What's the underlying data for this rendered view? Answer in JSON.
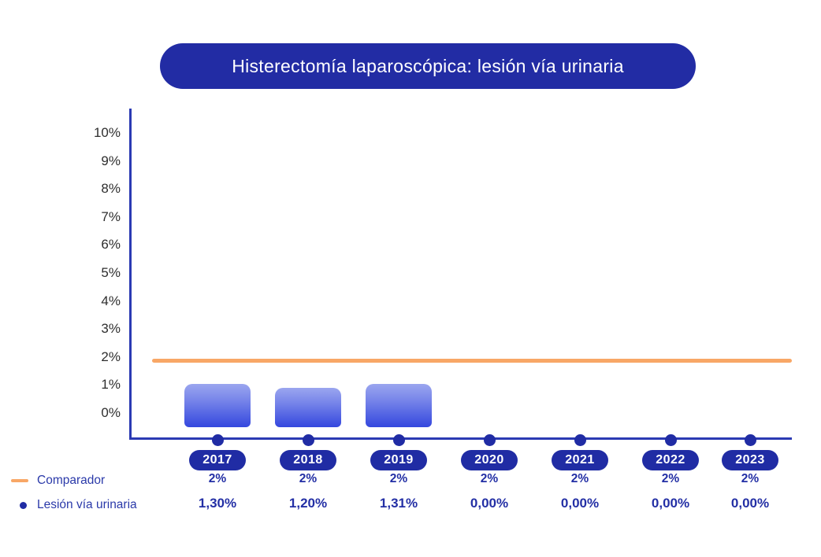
{
  "title": "Histerectomía laparoscópica: lesión vía urinaria",
  "colors": {
    "primary_blue": "#222CA4",
    "axis_blue": "#2B3AB3",
    "comparator_orange": "#F8A766",
    "bar_gradient_top": "#9BA6EF",
    "bar_gradient_bottom": "#3447DE",
    "value_text_blue": "#232FA5",
    "tick_text": "#2E2E2E",
    "background": "#FFFFFF"
  },
  "legend": {
    "comparator_label": "Comparador",
    "series_label": "Lesión vía urinaria"
  },
  "chart_data": {
    "type": "bar",
    "title": "Histerectomía laparoscópica: lesión vía urinaria",
    "categories": [
      "2017",
      "2018",
      "2019",
      "2020",
      "2021",
      "2022",
      "2023"
    ],
    "series": [
      {
        "name": "Comparador",
        "type": "line",
        "color": "#F8A766",
        "values": [
          2,
          2,
          2,
          2,
          2,
          2,
          2
        ],
        "display": [
          "2%",
          "2%",
          "2%",
          "2%",
          "2%",
          "2%",
          "2%"
        ]
      },
      {
        "name": "Lesión vía urinaria",
        "type": "bar",
        "color": "#3447DE",
        "values": [
          1.3,
          1.2,
          1.31,
          0.0,
          0.0,
          0.0,
          0.0
        ],
        "display": [
          "1,30%",
          "1,20%",
          "1,31%",
          "0,00%",
          "0,00%",
          "0,00%",
          "0,00%"
        ]
      }
    ],
    "xlabel": "",
    "ylabel": "",
    "ylim": [
      0,
      10
    ],
    "yticks": [
      "10%",
      "9%",
      "8%",
      "7%",
      "6%",
      "5%",
      "4%",
      "3%",
      "2%",
      "1%",
      "0%"
    ],
    "grid": false,
    "legend_position": "bottom-left"
  }
}
